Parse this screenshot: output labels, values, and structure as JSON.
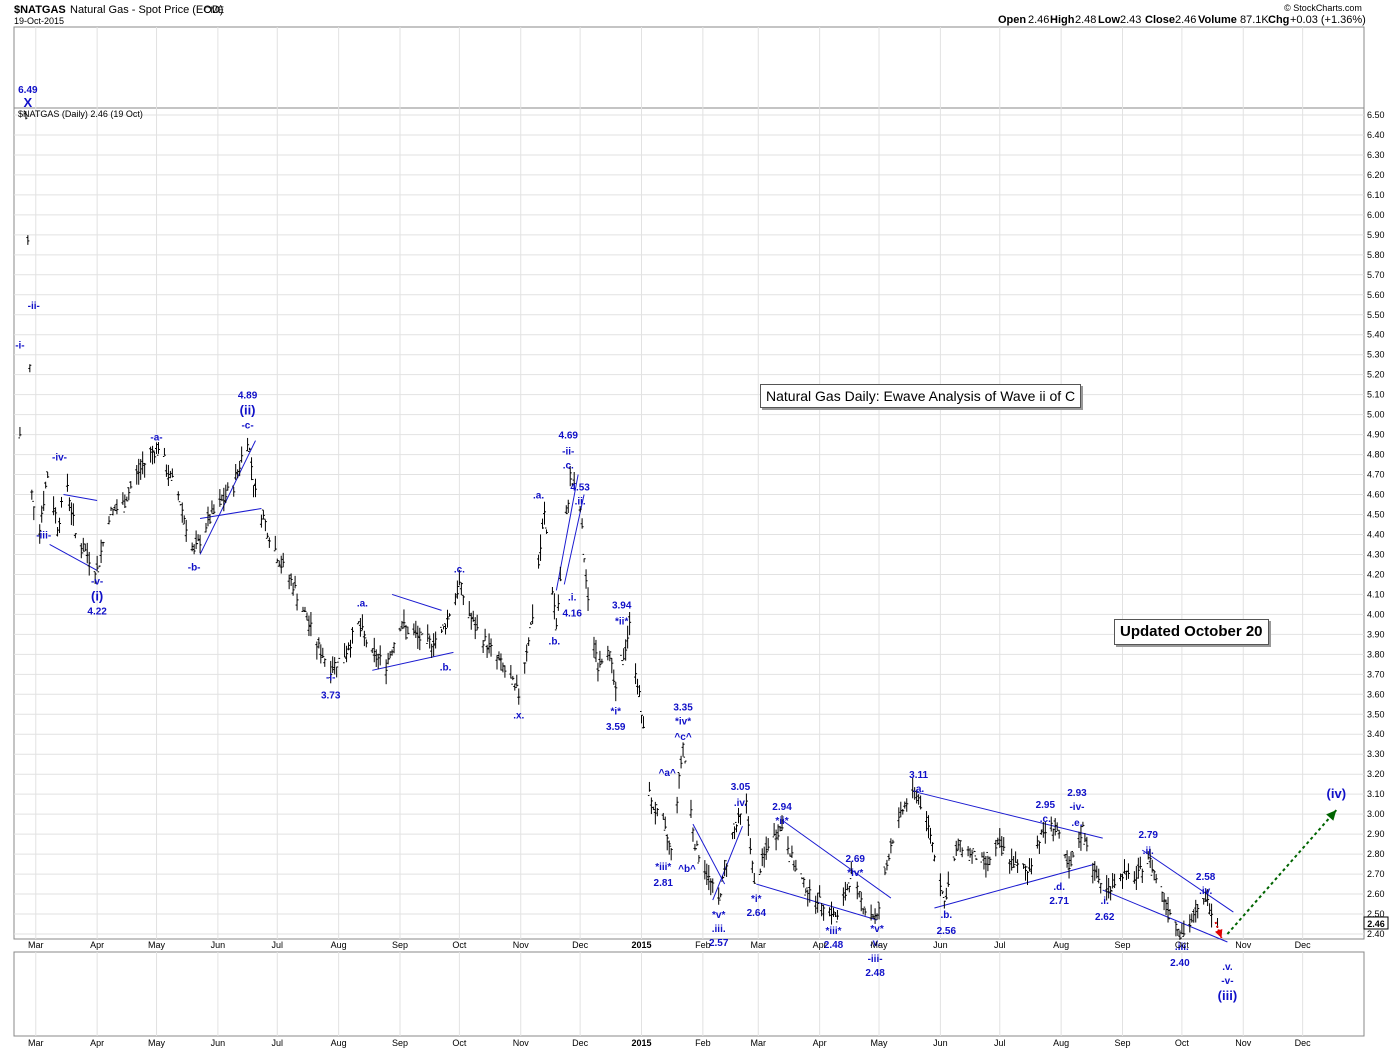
{
  "header": {
    "symbol": "$NATGAS",
    "description": "Natural Gas - Spot Price (EOD)",
    "exchange": "CME",
    "date": "19-Oct-2015",
    "open_label": "Open",
    "open": "2.46",
    "high_label": "High",
    "high": "2.48",
    "low_label": "Low",
    "low": "2.43",
    "close_label": "Close",
    "close": "2.46",
    "volume_label": "Volume",
    "volume": "87.1K",
    "chg_label": "Chg",
    "chg": "+0.03 (+1.36%)",
    "source": "© StockCharts.com",
    "legend": "$NATGAS (Daily) 2.46 (19 Oct)"
  },
  "annotations": {
    "title_box": "Natural Gas Daily: Ewave Analysis of Wave ii of C",
    "updated_box": "Updated October 20"
  },
  "colors": {
    "price_bars": "#000000",
    "wave_labels": "#1010c8",
    "trendlines": "#1a1ad0",
    "projection": "#006400",
    "warning_arrow": "#e00000"
  },
  "chart_data": {
    "type": "bar",
    "title": "Natural Gas - Spot Price (EOD)",
    "y_scale": "linear",
    "ylim": [
      2.4,
      6.5
    ],
    "y_ticks": [
      "6.50",
      "6.40",
      "6.30",
      "6.20",
      "6.10",
      "6.00",
      "5.90",
      "5.80",
      "5.70",
      "5.60",
      "5.50",
      "5.40",
      "5.30",
      "5.20",
      "5.10",
      "5.00",
      "4.90",
      "4.80",
      "4.70",
      "4.60",
      "4.50",
      "4.40",
      "4.30",
      "4.20",
      "4.10",
      "4.00",
      "3.90",
      "3.80",
      "3.70",
      "3.60",
      "3.50",
      "3.40",
      "3.30",
      "3.20",
      "3.10",
      "3.00",
      "2.90",
      "2.80",
      "2.70",
      "2.60",
      "2.50",
      "2.40"
    ],
    "x_ticks": [
      {
        "label": "Mar",
        "d": "2014-03-01"
      },
      {
        "label": "Apr",
        "d": "2014-04-01"
      },
      {
        "label": "May",
        "d": "2014-05-01"
      },
      {
        "label": "Jun",
        "d": "2014-06-01"
      },
      {
        "label": "Jul",
        "d": "2014-07-01"
      },
      {
        "label": "Aug",
        "d": "2014-08-01"
      },
      {
        "label": "Sep",
        "d": "2014-09-01"
      },
      {
        "label": "Oct",
        "d": "2014-10-01"
      },
      {
        "label": "Nov",
        "d": "2014-11-01"
      },
      {
        "label": "Dec",
        "d": "2014-12-01"
      },
      {
        "label": "2015",
        "d": "2015-01-01",
        "bold": true
      },
      {
        "label": "Feb",
        "d": "2015-02-01"
      },
      {
        "label": "Mar",
        "d": "2015-03-01"
      },
      {
        "label": "Apr",
        "d": "2015-04-01"
      },
      {
        "label": "May",
        "d": "2015-05-01"
      },
      {
        "label": "Jun",
        "d": "2015-06-01"
      },
      {
        "label": "Jul",
        "d": "2015-07-01"
      },
      {
        "label": "Aug",
        "d": "2015-08-01"
      },
      {
        "label": "Sep",
        "d": "2015-09-01"
      },
      {
        "label": "Oct",
        "d": "2015-10-01"
      },
      {
        "label": "Nov",
        "d": "2015-11-01"
      },
      {
        "label": "Dec",
        "d": "2015-12-01"
      }
    ],
    "last_value": "2.46",
    "grid": true,
    "price_path": [
      [
        "2014-02-21",
        4.9
      ],
      [
        "2014-02-24",
        6.49
      ],
      [
        "2014-02-27",
        4.6
      ],
      [
        "2014-03-03",
        4.45
      ],
      [
        "2014-03-07",
        4.7
      ],
      [
        "2014-03-12",
        4.45
      ],
      [
        "2014-03-17",
        4.65
      ],
      [
        "2014-03-21",
        4.4
      ],
      [
        "2014-03-27",
        4.3
      ],
      [
        "2014-04-01",
        4.22
      ],
      [
        "2014-04-07",
        4.5
      ],
      [
        "2014-04-14",
        4.55
      ],
      [
        "2014-04-21",
        4.7
      ],
      [
        "2014-04-28",
        4.8
      ],
      [
        "2014-05-02",
        4.85
      ],
      [
        "2014-05-07",
        4.7
      ],
      [
        "2014-05-12",
        4.6
      ],
      [
        "2014-05-16",
        4.45
      ],
      [
        "2014-05-20",
        4.3
      ],
      [
        "2014-05-26",
        4.45
      ],
      [
        "2014-06-02",
        4.55
      ],
      [
        "2014-06-09",
        4.65
      ],
      [
        "2014-06-16",
        4.89
      ],
      [
        "2014-06-20",
        4.6
      ],
      [
        "2014-06-27",
        4.4
      ],
      [
        "2014-07-03",
        4.25
      ],
      [
        "2014-07-09",
        4.15
      ],
      [
        "2014-07-15",
        4.0
      ],
      [
        "2014-07-21",
        3.85
      ],
      [
        "2014-07-28",
        3.73
      ],
      [
        "2014-08-04",
        3.8
      ],
      [
        "2014-08-11",
        3.95
      ],
      [
        "2014-08-18",
        3.8
      ],
      [
        "2014-08-25",
        3.75
      ],
      [
        "2014-09-01",
        3.95
      ],
      [
        "2014-09-08",
        3.9
      ],
      [
        "2014-09-15",
        3.85
      ],
      [
        "2014-09-22",
        3.9
      ],
      [
        "2014-10-01",
        4.15
      ],
      [
        "2014-10-08",
        3.95
      ],
      [
        "2014-10-15",
        3.85
      ],
      [
        "2014-10-22",
        3.75
      ],
      [
        "2014-10-31",
        3.6
      ],
      [
        "2014-11-07",
        4.0
      ],
      [
        "2014-11-13",
        4.5
      ],
      [
        "2014-11-19",
        3.95
      ],
      [
        "2014-11-26",
        4.69
      ],
      [
        "2014-12-01",
        4.53
      ],
      [
        "2014-12-05",
        4.05
      ],
      [
        "2014-12-10",
        3.75
      ],
      [
        "2014-12-15",
        3.85
      ],
      [
        "2014-12-19",
        3.6
      ],
      [
        "2014-12-26",
        3.94
      ],
      [
        "2014-12-31",
        3.59
      ],
      [
        "2015-01-06",
        3.05
      ],
      [
        "2015-01-12",
        2.95
      ],
      [
        "2015-01-16",
        2.81
      ],
      [
        "2015-01-22",
        3.35
      ],
      [
        "2015-01-28",
        2.85
      ],
      [
        "2015-02-03",
        2.7
      ],
      [
        "2015-02-09",
        2.57
      ],
      [
        "2015-02-16",
        2.9
      ],
      [
        "2015-02-23",
        3.05
      ],
      [
        "2015-02-27",
        2.64
      ],
      [
        "2015-03-06",
        2.85
      ],
      [
        "2015-03-13",
        2.94
      ],
      [
        "2015-03-20",
        2.72
      ],
      [
        "2015-03-27",
        2.6
      ],
      [
        "2015-04-03",
        2.55
      ],
      [
        "2015-04-10",
        2.48
      ],
      [
        "2015-04-17",
        2.69
      ],
      [
        "2015-04-24",
        2.52
      ],
      [
        "2015-04-30",
        2.48
      ],
      [
        "2015-05-07",
        2.85
      ],
      [
        "2015-05-14",
        3.05
      ],
      [
        "2015-05-20",
        3.11
      ],
      [
        "2015-05-27",
        2.9
      ],
      [
        "2015-06-03",
        2.56
      ],
      [
        "2015-06-10",
        2.85
      ],
      [
        "2015-06-17",
        2.8
      ],
      [
        "2015-06-24",
        2.75
      ],
      [
        "2015-07-01",
        2.85
      ],
      [
        "2015-07-08",
        2.75
      ],
      [
        "2015-07-15",
        2.71
      ],
      [
        "2015-07-22",
        2.9
      ],
      [
        "2015-07-29",
        2.95
      ],
      [
        "2015-08-05",
        2.71
      ],
      [
        "2015-08-12",
        2.93
      ],
      [
        "2015-08-18",
        2.7
      ],
      [
        "2015-08-24",
        2.62
      ],
      [
        "2015-09-01",
        2.7
      ],
      [
        "2015-09-08",
        2.68
      ],
      [
        "2015-09-14",
        2.79
      ],
      [
        "2015-09-21",
        2.6
      ],
      [
        "2015-09-28",
        2.45
      ],
      [
        "2015-10-02",
        2.4
      ],
      [
        "2015-10-08",
        2.5
      ],
      [
        "2015-10-13",
        2.58
      ],
      [
        "2015-10-19",
        2.46
      ]
    ],
    "trendlines": [
      [
        [
          "2014-03-15",
          4.6
        ],
        [
          "2014-04-01",
          4.57
        ]
      ],
      [
        [
          "2014-03-08",
          4.35
        ],
        [
          "2014-04-01",
          4.22
        ]
      ],
      [
        [
          "2014-05-23",
          4.3
        ],
        [
          "2014-06-20",
          4.87
        ]
      ],
      [
        [
          "2014-05-23",
          4.48
        ],
        [
          "2014-06-23",
          4.53
        ]
      ],
      [
        [
          "2014-08-28",
          4.1
        ],
        [
          "2014-09-22",
          4.02
        ]
      ],
      [
        [
          "2014-08-18",
          3.72
        ],
        [
          "2014-09-28",
          3.81
        ]
      ],
      [
        [
          "2014-11-19",
          4.12
        ],
        [
          "2014-11-30",
          4.7
        ]
      ],
      [
        [
          "2014-11-23",
          4.15
        ],
        [
          "2014-12-03",
          4.6
        ]
      ],
      [
        [
          "2015-01-27",
          2.95
        ],
        [
          "2015-02-12",
          2.65
        ]
      ],
      [
        [
          "2015-02-06",
          2.57
        ],
        [
          "2015-02-21",
          2.94
        ]
      ],
      [
        [
          "2015-03-13",
          2.97
        ],
        [
          "2015-05-07",
          2.58
        ]
      ],
      [
        [
          "2015-02-28",
          2.65
        ],
        [
          "2015-04-30",
          2.47
        ]
      ],
      [
        [
          "2015-05-20",
          3.11
        ],
        [
          "2015-08-22",
          2.88
        ]
      ],
      [
        [
          "2015-05-29",
          2.53
        ],
        [
          "2015-08-18",
          2.75
        ]
      ],
      [
        [
          "2015-09-11",
          2.82
        ],
        [
          "2015-10-27",
          2.51
        ]
      ],
      [
        [
          "2015-08-22",
          2.62
        ],
        [
          "2015-10-24",
          2.36
        ]
      ]
    ],
    "projection": [
      [
        "2015-10-24",
        2.4
      ],
      [
        "2015-12-18",
        3.02
      ]
    ],
    "warning_arrow": [
      [
        "2015-10-18",
        2.46
      ],
      [
        "2015-10-21",
        2.38
      ]
    ],
    "wave_labels": [
      {
        "t": "6.49",
        "d": "2014-02-25",
        "y": 6.61
      },
      {
        "t": "X",
        "d": "2014-02-25",
        "y": 6.54,
        "big": true
      },
      {
        "t": "-i-",
        "d": "2014-02-21",
        "y": 5.33
      },
      {
        "t": "-ii-",
        "d": "2014-02-28",
        "y": 5.53
      },
      {
        "t": "-iv-",
        "d": "2014-03-13",
        "y": 4.77
      },
      {
        "t": "-iii-",
        "d": "2014-03-05",
        "y": 4.38
      },
      {
        "t": "-v-",
        "d": "2014-04-01",
        "y": 4.15
      },
      {
        "t": "(i)",
        "d": "2014-04-01",
        "y": 4.07,
        "big": true
      },
      {
        "t": "4.22",
        "d": "2014-04-01",
        "y": 4.0
      },
      {
        "t": "-a-",
        "d": "2014-05-01",
        "y": 4.87
      },
      {
        "t": "-b-",
        "d": "2014-05-20",
        "y": 4.22
      },
      {
        "t": "4.89",
        "d": "2014-06-16",
        "y": 5.08
      },
      {
        "t": "(ii)",
        "d": "2014-06-16",
        "y": 5.0,
        "big": true
      },
      {
        "t": "-c-",
        "d": "2014-06-16",
        "y": 4.93
      },
      {
        "t": "-i-",
        "d": "2014-07-28",
        "y": 3.67
      },
      {
        "t": "3.73",
        "d": "2014-07-28",
        "y": 3.58
      },
      {
        "t": ".a.",
        "d": "2014-08-13",
        "y": 4.04
      },
      {
        "t": ".b.",
        "d": "2014-09-24",
        "y": 3.72
      },
      {
        "t": ".c.",
        "d": "2014-10-01",
        "y": 4.21
      },
      {
        "t": ".x.",
        "d": "2014-10-31",
        "y": 3.48
      },
      {
        "t": ".a.",
        "d": "2014-11-10",
        "y": 4.58
      },
      {
        "t": ".b.",
        "d": "2014-11-18",
        "y": 3.85
      },
      {
        "t": "4.69",
        "d": "2014-11-25",
        "y": 4.88
      },
      {
        "t": "-ii-",
        "d": "2014-11-25",
        "y": 4.8
      },
      {
        "t": ".c.",
        "d": "2014-11-25",
        "y": 4.73
      },
      {
        "t": "4.53",
        "d": "2014-12-01",
        "y": 4.62
      },
      {
        "t": ".ii.",
        "d": "2014-12-01",
        "y": 4.55
      },
      {
        "t": ".i.",
        "d": "2014-11-27",
        "y": 4.07
      },
      {
        "t": "4.16",
        "d": "2014-11-27",
        "y": 3.99
      },
      {
        "t": "3.94",
        "d": "2014-12-22",
        "y": 4.03
      },
      {
        "t": "*ii*",
        "d": "2014-12-22",
        "y": 3.95
      },
      {
        "t": "*i*",
        "d": "2014-12-19",
        "y": 3.5
      },
      {
        "t": "3.59",
        "d": "2014-12-19",
        "y": 3.42
      },
      {
        "t": "3.35",
        "d": "2015-01-22",
        "y": 3.52
      },
      {
        "t": "*iv*",
        "d": "2015-01-22",
        "y": 3.45
      },
      {
        "t": "^c^",
        "d": "2015-01-22",
        "y": 3.37
      },
      {
        "t": "^a^",
        "d": "2015-01-14",
        "y": 3.19
      },
      {
        "t": "*iii*",
        "d": "2015-01-12",
        "y": 2.72
      },
      {
        "t": "^b^",
        "d": "2015-01-24",
        "y": 2.71
      },
      {
        "t": "2.81",
        "d": "2015-01-12",
        "y": 2.64
      },
      {
        "t": "*v*",
        "d": "2015-02-09",
        "y": 2.48
      },
      {
        "t": ".iii.",
        "d": "2015-02-09",
        "y": 2.41
      },
      {
        "t": "2.57",
        "d": "2015-02-09",
        "y": 2.34
      },
      {
        "t": "3.05",
        "d": "2015-02-20",
        "y": 3.12
      },
      {
        "t": ".iv.",
        "d": "2015-02-20",
        "y": 3.04
      },
      {
        "t": "*i*",
        "d": "2015-02-28",
        "y": 2.56
      },
      {
        "t": "2.64",
        "d": "2015-02-28",
        "y": 2.49
      },
      {
        "t": "2.94",
        "d": "2015-03-13",
        "y": 3.02
      },
      {
        "t": "*ii*",
        "d": "2015-03-13",
        "y": 2.95
      },
      {
        "t": "2.69",
        "d": "2015-04-19",
        "y": 2.76
      },
      {
        "t": "*iv*",
        "d": "2015-04-19",
        "y": 2.69
      },
      {
        "t": "*iii*",
        "d": "2015-04-08",
        "y": 2.4
      },
      {
        "t": "2.48",
        "d": "2015-04-08",
        "y": 2.33
      },
      {
        "t": "*v*",
        "d": "2015-04-30",
        "y": 2.41
      },
      {
        "t": ".v.",
        "d": "2015-04-29",
        "y": 2.34
      },
      {
        "t": "-iii-",
        "d": "2015-04-29",
        "y": 2.26
      },
      {
        "t": "2.48",
        "d": "2015-04-29",
        "y": 2.19
      },
      {
        "t": "3.11",
        "d": "2015-05-21",
        "y": 3.18
      },
      {
        "t": ".a.",
        "d": "2015-05-21",
        "y": 3.11
      },
      {
        "t": ".b.",
        "d": "2015-06-04",
        "y": 2.48
      },
      {
        "t": "2.56",
        "d": "2015-06-04",
        "y": 2.4
      },
      {
        "t": "2.95",
        "d": "2015-07-24",
        "y": 3.03
      },
      {
        "t": ".c.",
        "d": "2015-07-24",
        "y": 2.96
      },
      {
        "t": ".d.",
        "d": "2015-07-31",
        "y": 2.62
      },
      {
        "t": "2.71",
        "d": "2015-07-31",
        "y": 2.55
      },
      {
        "t": "2.93",
        "d": "2015-08-09",
        "y": 3.09
      },
      {
        "t": "-iv-",
        "d": "2015-08-09",
        "y": 3.02
      },
      {
        "t": ".e.",
        "d": "2015-08-09",
        "y": 2.94
      },
      {
        "t": ".i.",
        "d": "2015-08-23",
        "y": 2.55
      },
      {
        "t": "2.62",
        "d": "2015-08-23",
        "y": 2.47
      },
      {
        "t": "2.79",
        "d": "2015-09-14",
        "y": 2.88
      },
      {
        "t": ".ii.",
        "d": "2015-09-14",
        "y": 2.8
      },
      {
        "t": "2.58",
        "d": "2015-10-13",
        "y": 2.67
      },
      {
        "t": ".iv.",
        "d": "2015-10-13",
        "y": 2.6
      },
      {
        "t": ".iii.",
        "d": "2015-10-01",
        "y": 2.32
      },
      {
        "t": "2.40",
        "d": "2015-09-30",
        "y": 2.24
      },
      {
        "t": ".v.",
        "d": "2015-10-24",
        "y": 2.22
      },
      {
        "t": "-v-",
        "d": "2015-10-24",
        "y": 2.15
      },
      {
        "t": "(iii)",
        "d": "2015-10-24",
        "y": 2.07,
        "big": true
      },
      {
        "t": "(iv)",
        "d": "2015-12-18",
        "y": 3.08,
        "big": true
      }
    ]
  }
}
